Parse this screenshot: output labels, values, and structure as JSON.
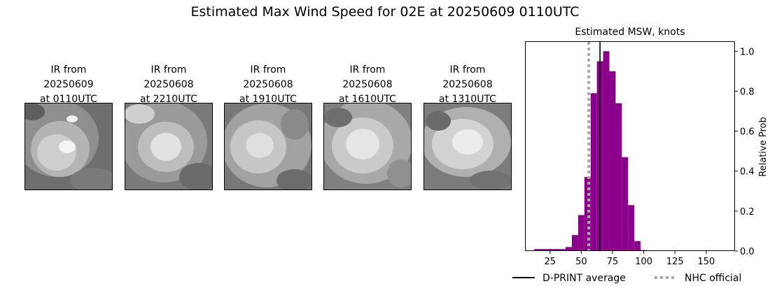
{
  "title": "Estimated Max Wind Speed for 02E at 20250609 0110UTC",
  "panels": [
    {
      "caption": "IR from\n20250609\nat 0110UTC"
    },
    {
      "caption": "IR from\n20250608\nat 2210UTC"
    },
    {
      "caption": "IR from\n20250608\nat 1910UTC"
    },
    {
      "caption": "IR from\n20250608\nat 1610UTC"
    },
    {
      "caption": "IR from\n20250608\nat 1310UTC"
    }
  ],
  "chart_data": {
    "type": "bar",
    "title": "Estimated MSW, knots",
    "xlabel": "",
    "ylabel": "Relative Prob",
    "xlim": [
      5,
      173
    ],
    "ylim": [
      0,
      1.05
    ],
    "x_ticks": [
      25,
      50,
      75,
      100,
      125,
      150
    ],
    "y_ticks": [
      0.0,
      0.2,
      0.4,
      0.6,
      0.8,
      1.0
    ],
    "y_tick_labels": [
      "0.0",
      "0.2",
      "0.4",
      "0.6",
      "0.8",
      "1.0"
    ],
    "bin_width": 5,
    "bins": [
      {
        "x": 15,
        "value": 0.01
      },
      {
        "x": 20,
        "value": 0.01
      },
      {
        "x": 25,
        "value": 0.01
      },
      {
        "x": 30,
        "value": 0.01
      },
      {
        "x": 35,
        "value": 0.01
      },
      {
        "x": 40,
        "value": 0.02
      },
      {
        "x": 45,
        "value": 0.08
      },
      {
        "x": 50,
        "value": 0.18
      },
      {
        "x": 55,
        "value": 0.37
      },
      {
        "x": 60,
        "value": 0.79
      },
      {
        "x": 65,
        "value": 0.95
      },
      {
        "x": 70,
        "value": 1.0
      },
      {
        "x": 75,
        "value": 0.9
      },
      {
        "x": 80,
        "value": 0.74
      },
      {
        "x": 85,
        "value": 0.47
      },
      {
        "x": 90,
        "value": 0.23
      },
      {
        "x": 95,
        "value": 0.05
      },
      {
        "x": 100,
        "value": 0.005
      },
      {
        "x": 105,
        "value": 0.003
      },
      {
        "x": 110,
        "value": 0.003
      },
      {
        "x": 115,
        "value": 0.003
      },
      {
        "x": 120,
        "value": 0.003
      },
      {
        "x": 125,
        "value": 0.003
      },
      {
        "x": 130,
        "value": 0.003
      },
      {
        "x": 135,
        "value": 0.003
      },
      {
        "x": 140,
        "value": 0.003
      },
      {
        "x": 145,
        "value": 0.003
      },
      {
        "x": 150,
        "value": 0.003
      },
      {
        "x": 155,
        "value": 0.003
      },
      {
        "x": 160,
        "value": 0.003
      },
      {
        "x": 165,
        "value": 0.003
      }
    ],
    "dprint_average": 65,
    "nhc_official": 56,
    "bar_color": "#8b008b",
    "average_color": "#000000",
    "official_color": "#aaaaaa",
    "legend": [
      {
        "label": "D-PRINT average",
        "style": "solid",
        "color": "#000000"
      },
      {
        "label": "NHC official",
        "style": "dotted",
        "color": "#aaaaaa"
      }
    ],
    "legend_position": "bottom"
  }
}
